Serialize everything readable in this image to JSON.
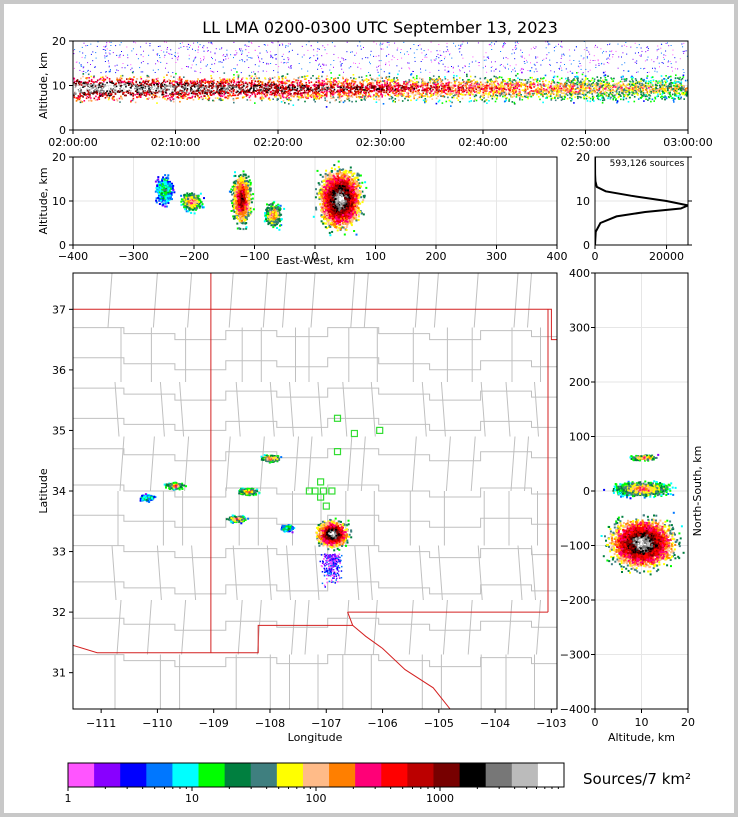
{
  "chart_data": [
    {
      "panel": "time-altitude",
      "type": "heatmap",
      "title": "LL LMA 0200-0300 UTC September 13, 2023",
      "ylabel": "Altitude, km",
      "xlabel": "",
      "x_ticks": [
        "02:00:00",
        "02:10:00",
        "02:20:00",
        "02:30:00",
        "02:40:00",
        "02:50:00",
        "03:00:00"
      ],
      "y_ticks": [
        0,
        10,
        20
      ],
      "ylim": [
        0,
        20
      ],
      "core_altitude_km": [
        7,
        12
      ]
    },
    {
      "panel": "east-west-altitude",
      "type": "heatmap",
      "xlabel": "East-West, km",
      "ylabel": "Altitude, km",
      "x_ticks": [
        -400,
        -300,
        -200,
        -100,
        0,
        100,
        200,
        300,
        400
      ],
      "y_ticks": [
        0,
        10,
        20
      ],
      "xlim": [
        -400,
        400
      ],
      "ylim": [
        0,
        20
      ],
      "clusters_km": [
        {
          "x": [
            -270,
            -230
          ],
          "alt": [
            8,
            17
          ],
          "intensity": "low"
        },
        {
          "x": [
            -230,
            -180
          ],
          "alt": [
            7,
            13
          ],
          "intensity": "medium"
        },
        {
          "x": [
            -145,
            -100
          ],
          "alt": [
            2,
            19
          ],
          "intensity": "high"
        },
        {
          "x": [
            -90,
            -50
          ],
          "alt": [
            3,
            11
          ],
          "intensity": "medium"
        },
        {
          "x": [
            -10,
            90
          ],
          "alt": [
            1,
            20
          ],
          "intensity": "very high"
        }
      ]
    },
    {
      "panel": "altitude-histogram",
      "type": "line",
      "annotation": "593,126 sources",
      "x_ticks": [
        0,
        20000
      ],
      "y_ticks": [
        0,
        10,
        20
      ],
      "xlim": [
        0,
        26000
      ],
      "ylim": [
        0,
        20
      ],
      "points": [
        [
          0,
          0
        ],
        [
          200,
          3
        ],
        [
          1500,
          5
        ],
        [
          6000,
          6.5
        ],
        [
          14000,
          7.5
        ],
        [
          24000,
          8.3
        ],
        [
          26000,
          9.0
        ],
        [
          20000,
          10.0
        ],
        [
          10000,
          11.2
        ],
        [
          3000,
          12.2
        ],
        [
          500,
          13.2
        ],
        [
          100,
          14.5
        ],
        [
          20,
          16
        ],
        [
          0,
          20
        ]
      ]
    },
    {
      "panel": "plan-view",
      "type": "heatmap",
      "xlabel": "Longitude",
      "ylabel": "Latitude",
      "x_ticks": [
        -111,
        -110,
        -109,
        -108,
        -107,
        -106,
        -105,
        -104,
        -103
      ],
      "y_ticks": [
        31,
        32,
        33,
        34,
        35,
        36,
        37
      ],
      "xlim": [
        -111.5,
        -102.9
      ],
      "ylim": [
        30.4,
        37.6
      ],
      "clusters": [
        {
          "lon": -110.2,
          "lat": 33.9,
          "intensity": "low"
        },
        {
          "lon": -109.7,
          "lat": 34.1,
          "intensity": "medium"
        },
        {
          "lon": -108.4,
          "lat": 34.0,
          "intensity": "medium"
        },
        {
          "lon": -108.6,
          "lat": 33.55,
          "intensity": "medium"
        },
        {
          "lon": -108.0,
          "lat": 34.55,
          "intensity": "medium"
        },
        {
          "lon": -107.7,
          "lat": 33.4,
          "intensity": "low"
        },
        {
          "lon": -106.9,
          "lat": 33.3,
          "intensity": "very high"
        }
      ],
      "stations": [
        [
          -106.8,
          35.2
        ],
        [
          -106.5,
          34.95
        ],
        [
          -106.05,
          35.0
        ],
        [
          -106.8,
          34.65
        ],
        [
          -107.3,
          34.0
        ],
        [
          -107.2,
          34.0
        ],
        [
          -107.05,
          34.0
        ],
        [
          -106.9,
          34.0
        ],
        [
          -107.1,
          34.15
        ],
        [
          -107.1,
          33.9
        ],
        [
          -107.0,
          33.75
        ]
      ]
    },
    {
      "panel": "north-south-altitude",
      "type": "heatmap",
      "xlabel": "Altitude, km",
      "ylabel": "North-South, km",
      "x_ticks": [
        0,
        10,
        20
      ],
      "y_ticks": [
        -400,
        -300,
        -200,
        -100,
        0,
        100,
        200,
        300,
        400
      ],
      "xlim": [
        0,
        20
      ],
      "ylim": [
        -400,
        400
      ],
      "clusters_km": [
        {
          "ns": [
            55,
            70
          ],
          "alt": [
            6,
            15
          ],
          "intensity": "medium"
        },
        {
          "ns": [
            -15,
            25
          ],
          "alt": [
            1,
            19
          ],
          "intensity": "medium"
        },
        {
          "ns": [
            -160,
            -30
          ],
          "alt": [
            0,
            20
          ],
          "intensity": "very high"
        }
      ]
    },
    {
      "panel": "colorbar",
      "type": "colorbar",
      "label": "Sources/7 km²",
      "tick_labels": [
        "1",
        "10",
        "100",
        "1000"
      ],
      "scale": "log",
      "range": [
        1,
        10000
      ],
      "colors": [
        "#ff55ff",
        "#8800ff",
        "#0000ff",
        "#0077ff",
        "#00ffff",
        "#00ff00",
        "#007f3f",
        "#3f7f7f",
        "#ffff00",
        "#ffbb88",
        "#ff7f00",
        "#ff0077",
        "#ff0000",
        "#bb0000",
        "#770000",
        "#000000",
        "#777777",
        "#bbbbbb",
        "#ffffff"
      ]
    }
  ]
}
